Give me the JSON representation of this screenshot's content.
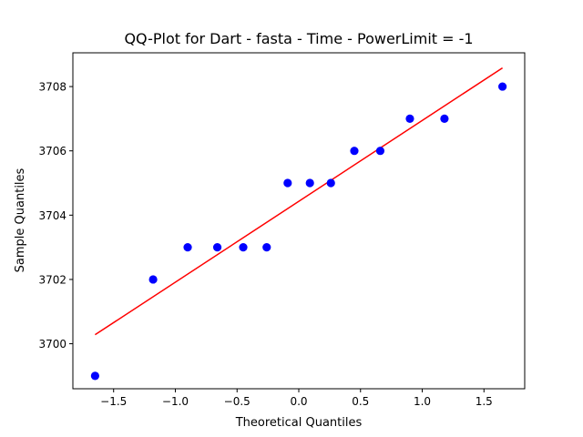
{
  "chart_data": {
    "type": "scatter",
    "title": "QQ-Plot for Dart - fasta - Time - PowerLimit = -1",
    "xlabel": "Theoretical Quantiles",
    "ylabel": "Sample Quantiles",
    "xlim": [
      -1.83,
      1.83
    ],
    "ylim": [
      3698.6,
      3709.05
    ],
    "xticks": [
      -1.5,
      -1.0,
      -0.5,
      0.0,
      0.5,
      1.0,
      1.5
    ],
    "xtick_labels": [
      "−1.5",
      "−1.0",
      "−0.5",
      "0.0",
      "0.5",
      "1.0",
      "1.5"
    ],
    "yticks": [
      3700,
      3702,
      3704,
      3706,
      3708
    ],
    "ytick_labels": [
      "3700",
      "3702",
      "3704",
      "3706",
      "3708"
    ],
    "grid": false,
    "points": {
      "color": "#0000ff",
      "x": [
        -1.65,
        -1.18,
        -0.9,
        -0.66,
        -0.45,
        -0.26,
        -0.09,
        0.09,
        0.26,
        0.45,
        0.66,
        0.9,
        1.18,
        1.65
      ],
      "y": [
        3699,
        3702,
        3703,
        3703,
        3703,
        3703,
        3705,
        3705,
        3705,
        3706,
        3706,
        3707,
        3707,
        3708
      ]
    },
    "fit_line": {
      "color": "#ff0000",
      "x": [
        -1.65,
        1.65
      ],
      "y": [
        3700.28,
        3708.58
      ]
    }
  }
}
